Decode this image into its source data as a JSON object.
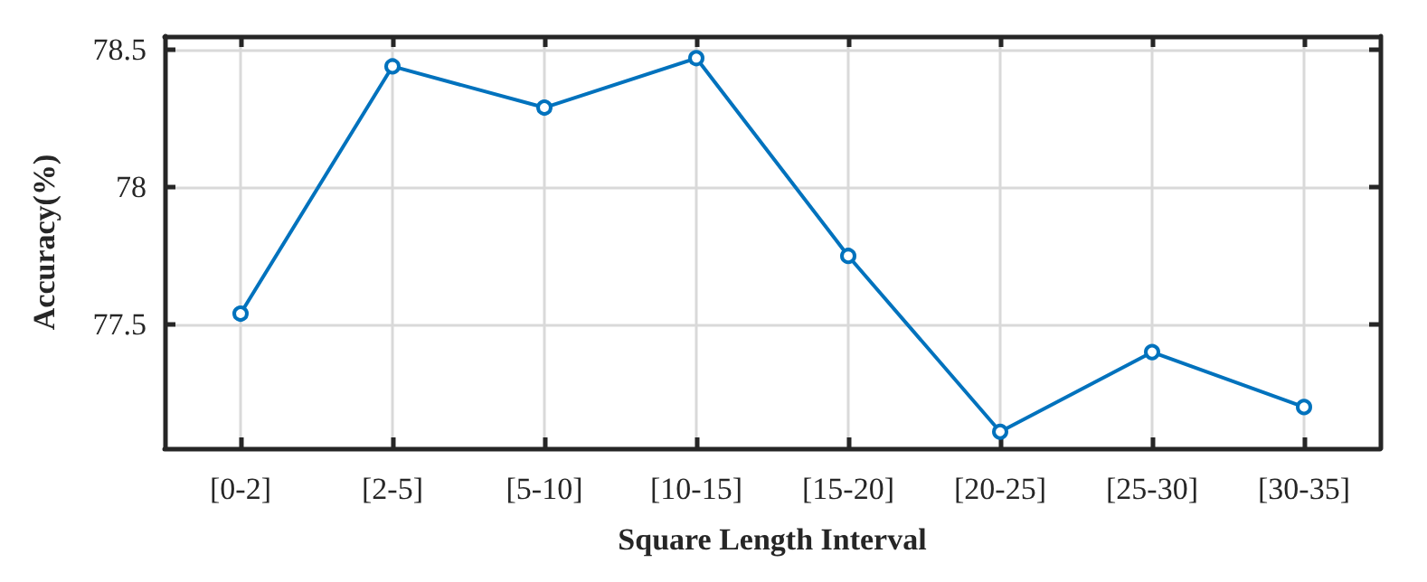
{
  "chart_data": {
    "type": "line",
    "xlabel": "Square Length Interval",
    "ylabel": "Accuracy(%)",
    "categories": [
      "[0-2]",
      "[2-5]",
      "[5-10]",
      "[10-15]",
      "[15-20]",
      "[20-25]",
      "[25-30]",
      "[30-35]"
    ],
    "series": [
      {
        "color": "#0072bd",
        "values": [
          77.54,
          78.44,
          78.29,
          78.47,
          77.75,
          77.11,
          77.4,
          77.2
        ]
      }
    ],
    "ylim": [
      77.05,
      78.55
    ],
    "yticks": [
      77.5,
      78,
      78.5
    ],
    "grid": true,
    "marker": "circle",
    "line_style": "solid"
  }
}
